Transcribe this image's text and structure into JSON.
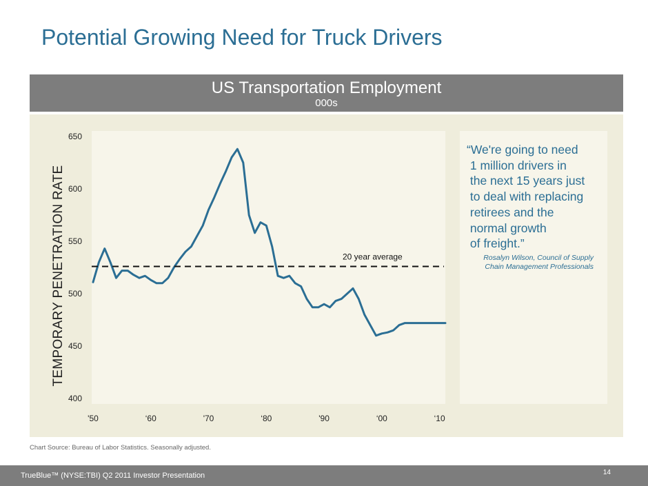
{
  "slide": {
    "title": "Potential Growing Need for Truck Drivers",
    "source": "Chart Source: Bureau of Labor Statistics. Seasonally adjusted.",
    "footer": "TrueBlue™ (NYSE:TBI) Q2 2011 Investor Presentation",
    "page_number": "14"
  },
  "quote": {
    "text": "“We're going to need\n 1 million drivers in\n the next 15 years just\n to deal with replacing\n retirees and the\n normal growth\n of freight.”",
    "attribution": "Rosalyn Wilson, Council of Supply\nChain Management Professionals"
  },
  "colors": {
    "title": "#2b6e94",
    "line": "#2b6e94",
    "band": "#7d7d7d",
    "panel": "#efeddc",
    "plot_bg": "#f7f5ea"
  },
  "chart_data": {
    "type": "line",
    "title": "US Transportation Employment",
    "subtitle": "000s",
    "ylabel": "TEMPORARY PENETRATION RATE",
    "xlabel": "",
    "ylim": [
      400,
      650
    ],
    "yticks": [
      "650",
      "600",
      "550",
      "500",
      "450",
      "400"
    ],
    "xticks": [
      "'50",
      "‘60",
      "'70",
      "‘80",
      "'90",
      "‘00",
      "‘10"
    ],
    "xtick_years": [
      1950,
      1960,
      1970,
      1980,
      1990,
      2000,
      2010
    ],
    "grid": false,
    "x": [
      1950,
      1951,
      1952,
      1953,
      1954,
      1955,
      1956,
      1957,
      1958,
      1959,
      1960,
      1961,
      1962,
      1963,
      1964,
      1965,
      1966,
      1967,
      1968,
      1969,
      1970,
      1971,
      1972,
      1973,
      1974,
      1975,
      1976,
      1977,
      1978,
      1979,
      1980,
      1981,
      1982,
      1983,
      1984,
      1985,
      1986,
      1987,
      1988,
      1989,
      1990,
      1991,
      1992,
      1993,
      1994,
      1995,
      1996,
      1997,
      1998,
      1999,
      2000,
      2001,
      2002,
      2003,
      2004,
      2005,
      2006,
      2007,
      2008,
      2009,
      2010,
      2011
    ],
    "series": [
      {
        "values": [
          511,
          530,
          543,
          530,
          515,
          522,
          522,
          518,
          515,
          517,
          513,
          510,
          510,
          515,
          525,
          533,
          540,
          545,
          555,
          565,
          580,
          592,
          605,
          617,
          630,
          638,
          625,
          575,
          558,
          568,
          565,
          545,
          517,
          515,
          517,
          510,
          507,
          495,
          487,
          487,
          490,
          487,
          493,
          495,
          500,
          505,
          495,
          480,
          470,
          460,
          462,
          463,
          465,
          470,
          472,
          472,
          472,
          472,
          472,
          472,
          472,
          472
        ]
      }
    ],
    "reference_line": {
      "label": "20 year average",
      "value": 526
    }
  }
}
